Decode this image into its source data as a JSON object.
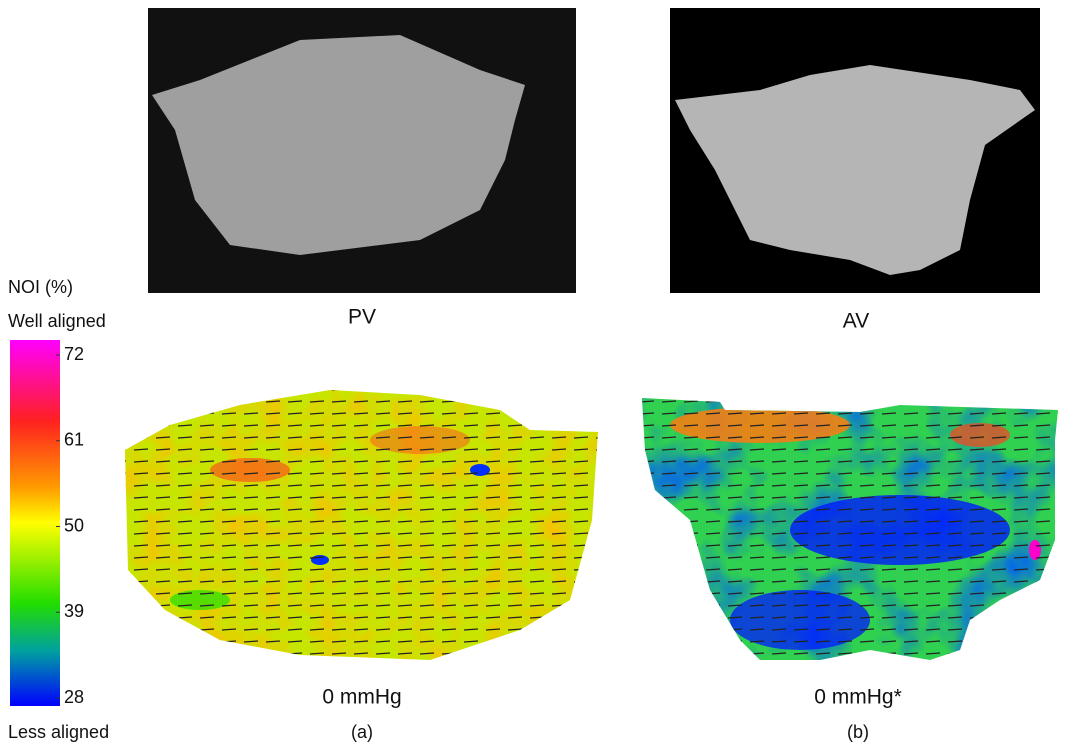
{
  "panels": [
    {
      "photo_label": "PV",
      "pressure_label": "0 mmHg",
      "panel_label": "(a)"
    },
    {
      "photo_label": "AV",
      "pressure_label": "0 mmHg*",
      "panel_label": "(b)"
    }
  ],
  "colorbar": {
    "title": "NOI (%)",
    "top_label": "Well aligned",
    "bottom_label": "Less aligned",
    "ticks": [
      72,
      61,
      50,
      39,
      28
    ]
  }
}
